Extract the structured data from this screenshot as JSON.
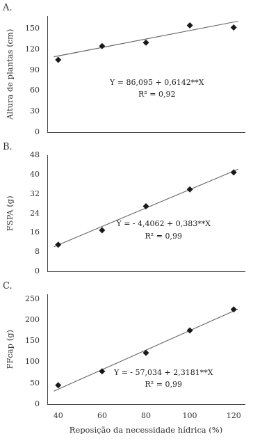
{
  "chart_data": [
    {
      "type": "scatter",
      "title": "A.",
      "ylabel": "Altura de plantas (cm)",
      "xlim": [
        35,
        125
      ],
      "xticks": [
        40,
        60,
        80,
        100,
        120
      ],
      "ylim": [
        0,
        168
      ],
      "yticks": [
        0,
        30,
        60,
        90,
        120,
        150
      ],
      "grid": false,
      "tick_labels": "y",
      "series": [
        {
          "type": "line",
          "color": "#666666",
          "line_style": "solid",
          "x": [
            38,
            122
          ],
          "values": [
            109.4346,
            161.0274
          ]
        },
        {
          "type": "scatter",
          "color": "#1a1a1a",
          "marker": "diamond",
          "x": [
            40,
            60,
            80,
            100,
            120
          ],
          "values": [
            105.0,
            125.0,
            130.0,
            155.0,
            152.0
          ]
        }
      ],
      "annotations": [
        {
          "text": [
            "Y = 86,095 + 0,6142**X",
            "R² = 0,92"
          ],
          "x": 85,
          "y": 63
        }
      ]
    },
    {
      "type": "scatter",
      "title": "B.",
      "ylabel": "FSPA (g)",
      "xlim": [
        35,
        125
      ],
      "xticks": [
        40,
        60,
        80,
        100,
        120
      ],
      "ylim": [
        0,
        48
      ],
      "yticks": [
        0,
        8,
        16,
        24,
        32,
        40,
        48
      ],
      "grid": false,
      "tick_labels": "y",
      "series": [
        {
          "type": "line",
          "color": "#666666",
          "line_style": "solid",
          "x": [
            38,
            122
          ],
          "values": [
            10.1478,
            42.3198
          ]
        },
        {
          "type": "scatter",
          "color": "#1a1a1a",
          "marker": "diamond",
          "x": [
            40,
            60,
            80,
            100,
            120
          ],
          "values": [
            11.0,
            17.0,
            27.0,
            34.0,
            41.0
          ]
        }
      ],
      "annotations": [
        {
          "text": [
            "Y = - 4,4062 + 0,383**X",
            "R² = 0,99"
          ],
          "x": 88,
          "y": 17
        }
      ]
    },
    {
      "type": "scatter",
      "title": "C.",
      "ylabel": "FFcap (g)",
      "xlabel": "Reposição da necessidade hídrica (%)",
      "xlim": [
        35,
        125
      ],
      "xticks": [
        40,
        60,
        80,
        100,
        120
      ],
      "ylim": [
        0,
        260
      ],
      "yticks": [
        0,
        50,
        100,
        150,
        200,
        250
      ],
      "grid": false,
      "series": [
        {
          "type": "line",
          "color": "#666666",
          "line_style": "solid",
          "x": [
            38,
            122
          ],
          "values": [
            31.0538,
            225.7742
          ]
        },
        {
          "type": "scatter",
          "color": "#1a1a1a",
          "marker": "diamond",
          "x": [
            40,
            60,
            80,
            100,
            120
          ],
          "values": [
            45.0,
            78.0,
            122.0,
            175.0,
            225.0
          ]
        }
      ],
      "annotations": [
        {
          "text": [
            "Y = - 57,034 + 2,3181**X",
            "R² = 0,99"
          ],
          "x": 88,
          "y": 60
        }
      ]
    }
  ]
}
